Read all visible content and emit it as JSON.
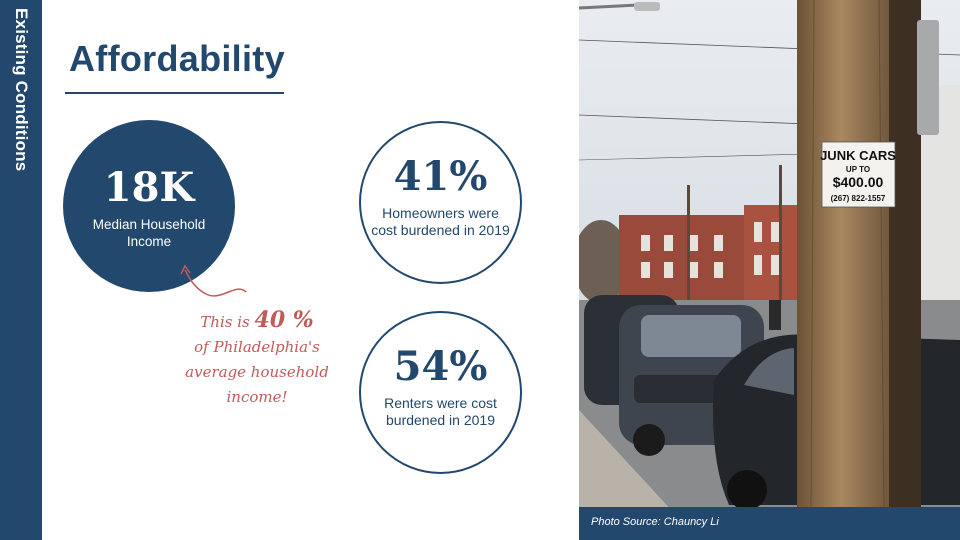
{
  "sidebar": {
    "label": "Existing Conditions"
  },
  "title": "Affordability",
  "stats": {
    "median_income": {
      "value": "18K",
      "label": "Median Household Income"
    },
    "homeowners": {
      "value": "41%",
      "label": "Homeowners were cost burdened in 2019"
    },
    "renters": {
      "value": "54%",
      "label": "Renters were cost burdened in 2019"
    }
  },
  "annotation": {
    "pre": "This is",
    "pct": "40 %",
    "post": "of Philadelphia's average household income!"
  },
  "photo": {
    "sign_line1": "JUNK CARS",
    "sign_line2": "UP TO",
    "sign_line3": "$400.00",
    "sign_line4": "(267) 822-1557",
    "caption": "Photo Source: Chauncy Li"
  },
  "colors": {
    "navy": "#23486d",
    "annotation": "#c25a5a"
  }
}
